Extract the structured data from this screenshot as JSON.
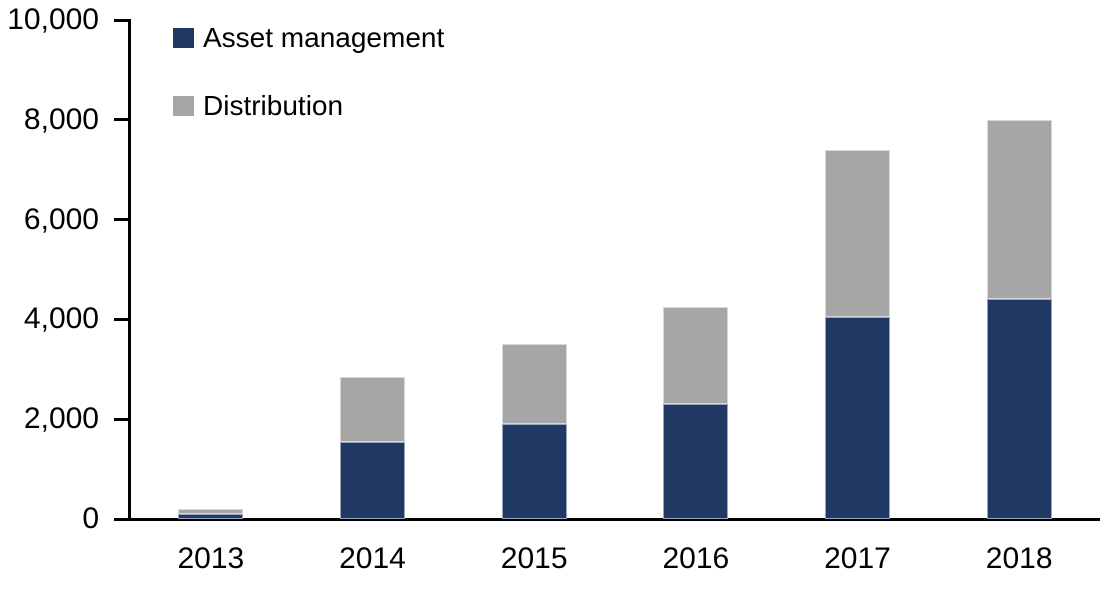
{
  "chart_data": {
    "type": "bar",
    "stacked": true,
    "title": "",
    "xlabel": "",
    "ylabel": "",
    "categories": [
      "2013",
      "2014",
      "2015",
      "2016",
      "2017",
      "2018"
    ],
    "series": [
      {
        "name": "Asset management",
        "color": "#1f3864",
        "values": [
          100,
          1550,
          1900,
          2300,
          4050,
          4400
        ]
      },
      {
        "name": "Distribution",
        "color": "#a6a6a6",
        "values": [
          100,
          1300,
          1600,
          1950,
          3350,
          3600
        ]
      }
    ],
    "totals": [
      200,
      2850,
      3500,
      4250,
      7400,
      8000
    ],
    "ylim": [
      0,
      10000
    ],
    "ytick_interval": 2000,
    "ytick_labels": [
      "0",
      "2,000",
      "4,000",
      "6,000",
      "8,000",
      "10,000"
    ],
    "grid": false,
    "legend_position": "top-left-inside",
    "axis_color": "#000000",
    "background_color": "#ffffff"
  }
}
